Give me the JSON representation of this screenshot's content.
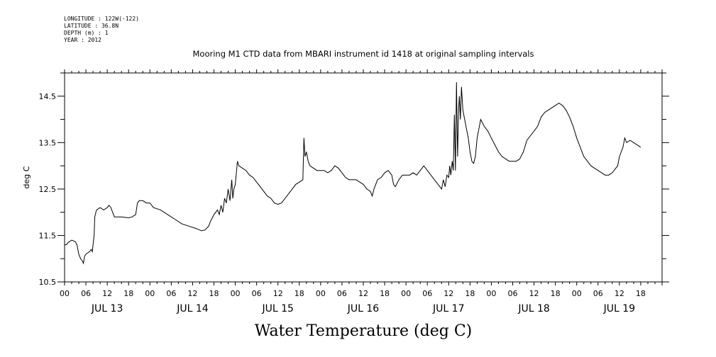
{
  "header": {
    "longitude": "LONGITUDE : 122W(-122)",
    "latitude": "LATITUDE : 36.8N",
    "depth": "DEPTH (m) : 1",
    "year": "YEAR : 2012"
  },
  "chart_data": {
    "type": "line",
    "title": "Mooring M1 CTD data from MBARI instrument id 1418 at original sampling intervals",
    "xlabel": "Water Temperature (deg C)",
    "ylabel": "deg C",
    "x_unit": "hours from 2012-07-13 00:00",
    "xlim": [
      0,
      168
    ],
    "ylim": [
      10.5,
      15.0
    ],
    "y_ticks": [
      "10.5",
      "11.5",
      "12.5",
      "13.5",
      "14.5"
    ],
    "x_tick_labels": [
      "00",
      "06",
      "12",
      "18",
      "00",
      "06",
      "12",
      "18",
      "00",
      "06",
      "12",
      "18",
      "00",
      "06",
      "12",
      "18",
      "00",
      "06",
      "12",
      "18",
      "00",
      "06",
      "12",
      "18",
      "00",
      "06",
      "12",
      "18"
    ],
    "day_labels": [
      "JUL 13",
      "JUL 14",
      "JUL 15",
      "JUL 16",
      "JUL 17",
      "JUL 18",
      "JUL 19"
    ],
    "grid": false,
    "series": [
      {
        "values": [
          [
            0,
            11.3
          ],
          [
            0.5,
            11.3
          ],
          [
            1,
            11.35
          ],
          [
            2,
            11.4
          ],
          [
            3,
            11.37
          ],
          [
            3.5,
            11.3
          ],
          [
            4,
            11.1
          ],
          [
            4.5,
            11.0
          ],
          [
            5,
            10.95
          ],
          [
            5.3,
            10.9
          ],
          [
            5.6,
            11.05
          ],
          [
            6,
            11.1
          ],
          [
            7,
            11.15
          ],
          [
            7.5,
            11.2
          ],
          [
            7.8,
            11.15
          ],
          [
            8,
            11.3
          ],
          [
            8.3,
            11.5
          ],
          [
            8.5,
            11.9
          ],
          [
            8.8,
            12.0
          ],
          [
            9,
            12.05
          ],
          [
            10,
            12.1
          ],
          [
            11,
            12.05
          ],
          [
            12,
            12.1
          ],
          [
            12.5,
            12.15
          ],
          [
            13,
            12.1
          ],
          [
            13.5,
            12.0
          ],
          [
            14,
            11.9
          ],
          [
            16,
            11.9
          ],
          [
            18,
            11.88
          ],
          [
            19,
            11.9
          ],
          [
            20,
            11.95
          ],
          [
            20.5,
            12.2
          ],
          [
            21,
            12.25
          ],
          [
            22,
            12.25
          ],
          [
            23,
            12.2
          ],
          [
            24,
            12.2
          ],
          [
            25,
            12.1
          ],
          [
            27,
            12.05
          ],
          [
            29,
            11.95
          ],
          [
            31,
            11.85
          ],
          [
            33,
            11.75
          ],
          [
            35,
            11.7
          ],
          [
            37,
            11.65
          ],
          [
            38.5,
            11.6
          ],
          [
            39.5,
            11.62
          ],
          [
            40.5,
            11.7
          ],
          [
            41,
            11.8
          ],
          [
            42,
            11.95
          ],
          [
            43,
            12.05
          ],
          [
            43.5,
            11.95
          ],
          [
            44,
            12.15
          ],
          [
            44.5,
            12.0
          ],
          [
            45,
            12.3
          ],
          [
            45.5,
            12.2
          ],
          [
            46,
            12.5
          ],
          [
            46.5,
            12.25
          ],
          [
            47,
            12.7
          ],
          [
            47.3,
            12.3
          ],
          [
            47.6,
            12.5
          ],
          [
            48,
            12.6
          ],
          [
            48.3,
            12.85
          ],
          [
            48.6,
            13.1
          ],
          [
            49,
            13.0
          ],
          [
            50,
            12.95
          ],
          [
            51,
            12.9
          ],
          [
            52,
            12.8
          ],
          [
            53,
            12.75
          ],
          [
            54,
            12.65
          ],
          [
            55,
            12.55
          ],
          [
            56,
            12.45
          ],
          [
            57,
            12.35
          ],
          [
            58,
            12.3
          ],
          [
            59,
            12.2
          ],
          [
            60,
            12.17
          ],
          [
            61,
            12.2
          ],
          [
            62,
            12.3
          ],
          [
            63,
            12.4
          ],
          [
            64,
            12.5
          ],
          [
            65,
            12.6
          ],
          [
            66,
            12.65
          ],
          [
            67,
            12.7
          ],
          [
            67.3,
            13.6
          ],
          [
            67.6,
            13.2
          ],
          [
            68,
            13.3
          ],
          [
            68.5,
            13.1
          ],
          [
            69,
            13.0
          ],
          [
            70,
            12.95
          ],
          [
            71,
            12.9
          ],
          [
            72,
            12.9
          ],
          [
            73,
            12.9
          ],
          [
            74,
            12.85
          ],
          [
            75,
            12.9
          ],
          [
            76,
            13.0
          ],
          [
            77,
            12.95
          ],
          [
            78,
            12.85
          ],
          [
            79,
            12.75
          ],
          [
            80,
            12.7
          ],
          [
            81,
            12.7
          ],
          [
            82,
            12.7
          ],
          [
            83,
            12.65
          ],
          [
            84,
            12.6
          ],
          [
            85,
            12.5
          ],
          [
            86,
            12.45
          ],
          [
            86.5,
            12.35
          ],
          [
            87,
            12.5
          ],
          [
            88,
            12.7
          ],
          [
            89,
            12.75
          ],
          [
            90,
            12.85
          ],
          [
            91,
            12.9
          ],
          [
            92,
            12.8
          ],
          [
            92.5,
            12.6
          ],
          [
            93,
            12.55
          ],
          [
            94,
            12.7
          ],
          [
            95,
            12.8
          ],
          [
            96,
            12.8
          ],
          [
            97,
            12.8
          ],
          [
            98,
            12.85
          ],
          [
            99,
            12.8
          ],
          [
            100,
            12.9
          ],
          [
            101,
            13.0
          ],
          [
            102,
            12.9
          ],
          [
            103,
            12.8
          ],
          [
            104,
            12.7
          ],
          [
            105,
            12.6
          ],
          [
            105.5,
            12.55
          ],
          [
            106,
            12.5
          ],
          [
            106.5,
            12.7
          ],
          [
            107,
            12.55
          ],
          [
            107.5,
            12.8
          ],
          [
            108,
            12.75
          ],
          [
            108.3,
            13.0
          ],
          [
            108.6,
            12.8
          ],
          [
            109,
            13.1
          ],
          [
            109.3,
            12.9
          ],
          [
            109.6,
            14.1
          ],
          [
            109.9,
            12.9
          ],
          [
            110.2,
            14.8
          ],
          [
            110.5,
            13.2
          ],
          [
            110.8,
            14.2
          ],
          [
            111,
            14.5
          ],
          [
            111.3,
            14.0
          ],
          [
            111.6,
            14.7
          ],
          [
            112,
            14.2
          ],
          [
            112.5,
            14.0
          ],
          [
            113,
            13.8
          ],
          [
            113.5,
            13.6
          ],
          [
            114,
            13.3
          ],
          [
            114.5,
            13.1
          ],
          [
            115,
            13.05
          ],
          [
            115.5,
            13.2
          ],
          [
            116,
            13.6
          ],
          [
            116.5,
            13.8
          ],
          [
            117,
            14.0
          ],
          [
            118,
            13.85
          ],
          [
            119,
            13.75
          ],
          [
            120,
            13.6
          ],
          [
            121,
            13.45
          ],
          [
            122,
            13.3
          ],
          [
            123,
            13.2
          ],
          [
            124,
            13.15
          ],
          [
            125,
            13.1
          ],
          [
            126,
            13.1
          ],
          [
            127,
            13.1
          ],
          [
            128,
            13.15
          ],
          [
            129,
            13.3
          ],
          [
            130,
            13.55
          ],
          [
            131,
            13.65
          ],
          [
            132,
            13.75
          ],
          [
            133,
            13.85
          ],
          [
            134,
            14.05
          ],
          [
            135,
            14.15
          ],
          [
            136,
            14.2
          ],
          [
            137,
            14.25
          ],
          [
            138,
            14.3
          ],
          [
            139,
            14.35
          ],
          [
            140,
            14.3
          ],
          [
            141,
            14.2
          ],
          [
            142,
            14.05
          ],
          [
            143,
            13.85
          ],
          [
            144,
            13.6
          ],
          [
            145,
            13.4
          ],
          [
            146,
            13.2
          ],
          [
            147,
            13.1
          ],
          [
            148,
            13.0
          ],
          [
            149,
            12.95
          ],
          [
            150,
            12.9
          ],
          [
            151,
            12.85
          ],
          [
            152,
            12.8
          ],
          [
            153,
            12.8
          ],
          [
            154,
            12.85
          ],
          [
            155,
            12.95
          ],
          [
            155.5,
            13.0
          ],
          [
            156,
            13.2
          ],
          [
            157,
            13.4
          ],
          [
            157.5,
            13.6
          ],
          [
            158,
            13.5
          ],
          [
            159,
            13.55
          ],
          [
            160,
            13.5
          ],
          [
            161,
            13.45
          ],
          [
            162,
            13.4
          ]
        ]
      }
    ]
  }
}
